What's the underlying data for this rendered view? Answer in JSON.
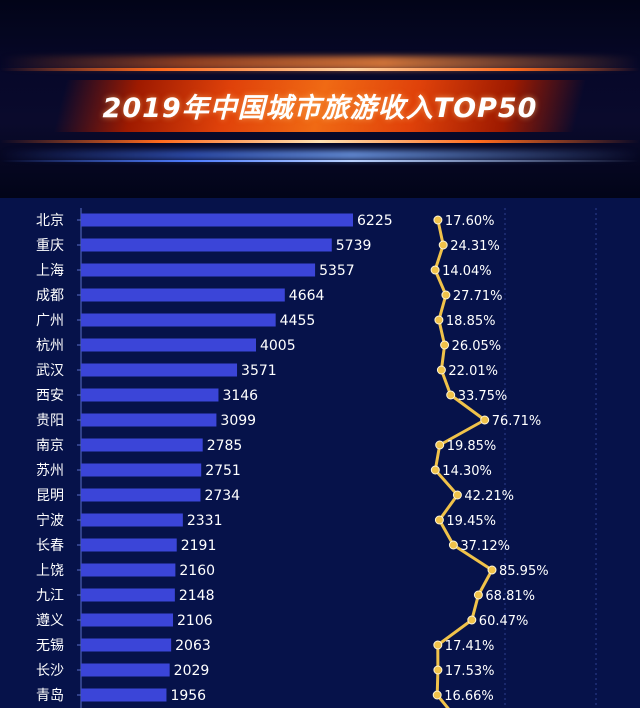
{
  "chart_data": {
    "type": "bar",
    "title": "2019年中国城市旅游收入TOP50",
    "categories": [
      "北京",
      "重庆",
      "上海",
      "成都",
      "广州",
      "杭州",
      "武汉",
      "西安",
      "贵阳",
      "南京",
      "苏州",
      "昆明",
      "宁波",
      "长春",
      "上饶",
      "九江",
      "遵义",
      "无锡",
      "长沙",
      "青岛"
    ],
    "series": [
      {
        "type": "bar",
        "values": [
          6225,
          5739,
          5357,
          4664,
          4455,
          4005,
          3571,
          3146,
          3099,
          2785,
          2751,
          2734,
          2331,
          2191,
          2160,
          2148,
          2106,
          2063,
          2029,
          1956
        ]
      },
      {
        "type": "line",
        "values": [
          17.6,
          24.31,
          14.04,
          27.71,
          18.85,
          26.05,
          22.01,
          33.75,
          76.71,
          19.85,
          14.3,
          42.21,
          19.45,
          37.12,
          85.95,
          68.81,
          60.47,
          17.41,
          17.53,
          16.66
        ],
        "labels": [
          "17.60%",
          "24.31%",
          "14.04%",
          "27.71%",
          "18.85%",
          "26.05%",
          "22.01%",
          "33.75%",
          "76.71%",
          "19.85%",
          "14.30%",
          "42.21%",
          "19.45%",
          "37.12%",
          "85.95%",
          "68.81%",
          "60.47%",
          "17.41%",
          "17.53%",
          "16.66%"
        ]
      }
    ],
    "colors": {
      "bar": "#3b45d8",
      "line": "#f0c24a",
      "text": "#ffffff",
      "accent": "#f06a14"
    }
  }
}
